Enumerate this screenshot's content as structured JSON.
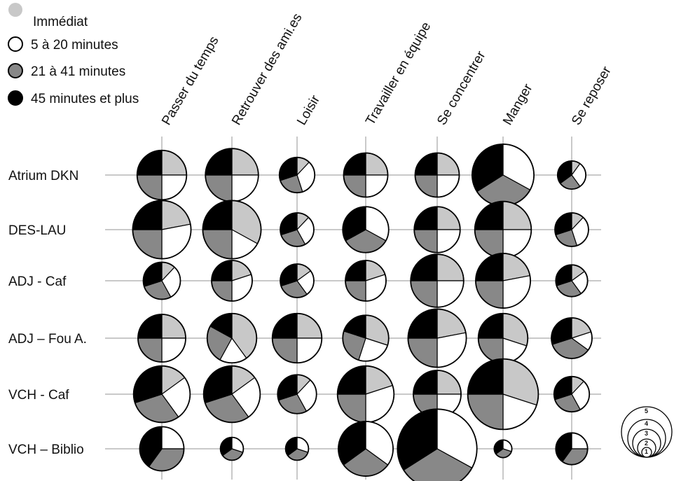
{
  "chart_data": {
    "type": "pie-matrix",
    "legend": [
      {
        "label": "Immédiat",
        "color": "#c8c8c8"
      },
      {
        "label": "5 à 20 minutes",
        "color": "#ffffff"
      },
      {
        "label": "21 à 41 minutes",
        "color": "#888888"
      },
      {
        "label": "45 minutes et plus",
        "color": "#000000"
      }
    ],
    "columns": [
      "Passer du temps",
      "Retrouver des ami.es",
      "Loisir",
      "Travailler en équipe",
      "Se concentrer",
      "Manger",
      "Se reposer"
    ],
    "rows": [
      "Atrium DKN",
      "DES-LAU",
      "ADJ - Caf",
      "ADJ – Fou A.",
      "VCH - Caf",
      "VCH – Biblio"
    ],
    "size_scale": [
      "1",
      "2",
      "3",
      "4",
      "5"
    ],
    "cells": [
      [
        {
          "size": 2.8,
          "shares": [
            25,
            25,
            25,
            25
          ]
        },
        {
          "size": 3.0,
          "shares": [
            25,
            25,
            25,
            25
          ]
        },
        {
          "size": 2.0,
          "shares": [
            12,
            33,
            25,
            30
          ]
        },
        {
          "size": 2.5,
          "shares": [
            25,
            25,
            25,
            25
          ]
        },
        {
          "size": 2.5,
          "shares": [
            25,
            25,
            25,
            25
          ]
        },
        {
          "size": 3.5,
          "shares": [
            0,
            33,
            33,
            34
          ]
        },
        {
          "size": 1.6,
          "shares": [
            10,
            30,
            25,
            35
          ]
        }
      ],
      [
        {
          "size": 3.3,
          "shares": [
            22,
            28,
            25,
            25
          ]
        },
        {
          "size": 3.3,
          "shares": [
            33,
            17,
            25,
            25
          ]
        },
        {
          "size": 1.9,
          "shares": [
            12,
            30,
            28,
            30
          ]
        },
        {
          "size": 2.6,
          "shares": [
            0,
            33,
            34,
            33
          ]
        },
        {
          "size": 2.6,
          "shares": [
            25,
            25,
            25,
            25
          ]
        },
        {
          "size": 3.2,
          "shares": [
            25,
            25,
            25,
            25
          ]
        },
        {
          "size": 1.9,
          "shares": [
            12,
            33,
            25,
            30
          ]
        }
      ],
      [
        {
          "size": 2.1,
          "shares": [
            12,
            30,
            28,
            30
          ]
        },
        {
          "size": 2.3,
          "shares": [
            20,
            30,
            25,
            25
          ]
        },
        {
          "size": 1.9,
          "shares": [
            15,
            25,
            30,
            30
          ]
        },
        {
          "size": 2.3,
          "shares": [
            20,
            30,
            25,
            25
          ]
        },
        {
          "size": 3.0,
          "shares": [
            25,
            25,
            25,
            25
          ]
        },
        {
          "size": 3.1,
          "shares": [
            22,
            28,
            25,
            25
          ]
        },
        {
          "size": 1.8,
          "shares": [
            15,
            25,
            30,
            30
          ]
        }
      ],
      [
        {
          "size": 2.7,
          "shares": [
            25,
            25,
            25,
            25
          ]
        },
        {
          "size": 2.8,
          "shares": [
            40,
            18,
            25,
            17
          ]
        },
        {
          "size": 2.8,
          "shares": [
            25,
            25,
            25,
            25
          ]
        },
        {
          "size": 2.6,
          "shares": [
            30,
            25,
            25,
            20
          ]
        },
        {
          "size": 3.3,
          "shares": [
            22,
            28,
            25,
            25
          ]
        },
        {
          "size": 2.8,
          "shares": [
            30,
            20,
            25,
            25
          ]
        },
        {
          "size": 2.3,
          "shares": [
            20,
            15,
            35,
            30
          ]
        }
      ],
      [
        {
          "size": 3.2,
          "shares": [
            15,
            25,
            30,
            30
          ]
        },
        {
          "size": 3.2,
          "shares": [
            15,
            25,
            30,
            30
          ]
        },
        {
          "size": 2.2,
          "shares": [
            12,
            30,
            28,
            30
          ]
        },
        {
          "size": 3.2,
          "shares": [
            20,
            30,
            25,
            25
          ]
        },
        {
          "size": 2.7,
          "shares": [
            25,
            25,
            25,
            25
          ]
        },
        {
          "size": 4.0,
          "shares": [
            30,
            20,
            25,
            25
          ]
        },
        {
          "size": 2.0,
          "shares": [
            12,
            30,
            28,
            30
          ]
        }
      ],
      [
        {
          "size": 2.5,
          "shares": [
            0,
            25,
            35,
            40
          ]
        },
        {
          "size": 1.3,
          "shares": [
            0,
            30,
            35,
            35
          ]
        },
        {
          "size": 1.3,
          "shares": [
            0,
            30,
            35,
            35
          ]
        },
        {
          "size": 3.1,
          "shares": [
            0,
            35,
            30,
            35
          ]
        },
        {
          "size": 4.5,
          "shares": [
            0,
            33,
            33,
            34
          ]
        },
        {
          "size": 1.0,
          "shares": [
            0,
            30,
            35,
            35
          ]
        },
        {
          "size": 1.8,
          "shares": [
            0,
            25,
            35,
            40
          ]
        }
      ]
    ]
  }
}
